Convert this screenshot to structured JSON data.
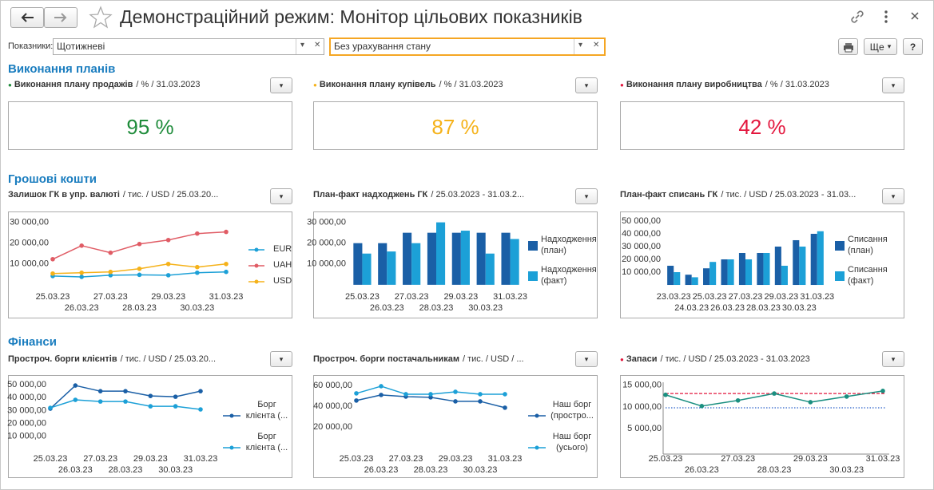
{
  "header": {
    "title": "Демонстраційний режим: Монітор цільових показників"
  },
  "filters": {
    "label": "Показники:",
    "period": "Щотижневі",
    "state": "Без урахування стану"
  },
  "toolbar": {
    "more": "Ще",
    "help": "?"
  },
  "sections": [
    {
      "title": "Виконання планів"
    },
    {
      "title": "Грошові кошти"
    },
    {
      "title": "Фінанси"
    }
  ],
  "kpis": [
    {
      "name": "Виконання плану продажів",
      "details": "/ % / 31.03.2023",
      "value": "95 %",
      "color": "#1f8c3b"
    },
    {
      "name": "Виконання плану купівель",
      "details": "/ % / 31.03.2023",
      "value": "87 %",
      "color": "#f5b21a"
    },
    {
      "name": "Виконання плану виробництва",
      "details": "/ % / 31.03.2023",
      "value": "42 %",
      "color": "#e3173e"
    }
  ],
  "chart_data": [
    {
      "type": "line",
      "title": "Залишок ГК в упр. валюті",
      "details": "/ тис. / USD / 25.03.20...",
      "categories": [
        "25.03.23",
        "26.03.23",
        "27.03.23",
        "28.03.23",
        "29.03.23",
        "30.03.23",
        "31.03.23"
      ],
      "series": [
        {
          "name": "EUR",
          "color": "#1ca0d7",
          "values": [
            4200,
            3800,
            4600,
            4800,
            4600,
            5800,
            6200
          ]
        },
        {
          "name": "UAH",
          "color": "#e05c65",
          "values": [
            12300,
            18800,
            15400,
            19600,
            21500,
            24600,
            25400
          ]
        },
        {
          "name": "USD",
          "color": "#f5b21a",
          "values": [
            5400,
            5800,
            6200,
            7700,
            10000,
            8500,
            10000
          ]
        }
      ],
      "ylim": [
        -3500,
        31000
      ],
      "yticks": [
        {
          "value": 10000,
          "label": "10 000,00"
        },
        {
          "value": 20000,
          "label": "20 000,00"
        },
        {
          "value": 30000,
          "label": "30 000,00"
        }
      ],
      "legend": "right"
    },
    {
      "type": "bar",
      "title": "План-факт надходжень ГК",
      "details": "/ 25.03.2023 - 31.03.2...",
      "categories": [
        "25.03.23",
        "26.03.23",
        "27.03.23",
        "28.03.23",
        "29.03.23",
        "30.03.23",
        "31.03.23"
      ],
      "series": [
        {
          "name": "Надходження (план)",
          "color": "#1a5fa6",
          "values": [
            20000,
            20000,
            25000,
            25000,
            25000,
            25000,
            25000
          ]
        },
        {
          "name": "Надходження (факт)",
          "color": "#1ca0d7",
          "values": [
            15000,
            16000,
            20000,
            30000,
            26000,
            15000,
            22000
          ]
        }
      ],
      "ylim": [
        -3500,
        31000
      ],
      "yticks": [
        {
          "value": 10000,
          "label": "10 000,00"
        },
        {
          "value": 20000,
          "label": "20 000,00"
        },
        {
          "value": 30000,
          "label": "30 000,00"
        }
      ],
      "legend": "right"
    },
    {
      "type": "bar",
      "title": "План-факт списань ГК",
      "details": "/ тис. / USD / 25.03.2023 - 31.03...",
      "categories": [
        "23.03.23",
        "24.03.23",
        "25.03.23",
        "26.03.23",
        "27.03.23",
        "28.03.23",
        "29.03.23",
        "30.03.23",
        "31.03.23"
      ],
      "series": [
        {
          "name": "Списання (план)",
          "color": "#1a5fa6",
          "values": [
            15000,
            8000,
            13000,
            20000,
            25000,
            25000,
            30000,
            35000,
            40000
          ]
        },
        {
          "name": "Списання (факт)",
          "color": "#1ca0d7",
          "values": [
            10000,
            6000,
            18000,
            20000,
            20000,
            25000,
            15000,
            30000,
            42000
          ]
        }
      ],
      "ylim": [
        -5600,
        50600
      ],
      "yticks": [
        {
          "value": 10000,
          "label": "10 000,00"
        },
        {
          "value": 20000,
          "label": "20 000,00"
        },
        {
          "value": 30000,
          "label": "30 000,00"
        },
        {
          "value": 40000,
          "label": "40 000,00"
        },
        {
          "value": 50000,
          "label": "50 000,00"
        }
      ],
      "legend": "right"
    },
    {
      "type": "line",
      "title": "Простроч. борги клієнтів",
      "details": "/ тис. / USD / 25.03.20...",
      "categories": [
        "25.03.23",
        "26.03.23",
        "27.03.23",
        "28.03.23",
        "29.03.23",
        "30.03.23",
        "31.03.23"
      ],
      "series": [
        {
          "name": "Борг клієнта (...",
          "color": "#1a5fa6",
          "values": [
            31500,
            49400,
            45000,
            45000,
            41300,
            40700,
            45000
          ]
        },
        {
          "name": "Борг клієнта (...",
          "color": "#1ca0d7",
          "values": [
            32100,
            38300,
            37000,
            37000,
            33300,
            33300,
            30900
          ]
        }
      ],
      "ylim": [
        -3700,
        51900
      ],
      "yticks": [
        {
          "value": 10000,
          "label": "10 000,00"
        },
        {
          "value": 20000,
          "label": "20 000,00"
        },
        {
          "value": 30000,
          "label": "30 000,00"
        },
        {
          "value": 40000,
          "label": "40 000,00"
        },
        {
          "value": 50000,
          "label": "50 000,00"
        }
      ],
      "legend": "right"
    },
    {
      "type": "line",
      "title": "Простроч. борги постачальникам",
      "details": "/ тис. / USD / ...",
      "categories": [
        "25.03.23",
        "26.03.23",
        "27.03.23",
        "28.03.23",
        "29.03.23",
        "30.03.23",
        "31.03.23"
      ],
      "series": [
        {
          "name": "Наш борг (простро...",
          "color": "#1a5fa6",
          "values": [
            45400,
            50800,
            49200,
            48500,
            44600,
            44600,
            38500
          ]
        },
        {
          "name": "Наш борг (усього)",
          "color": "#1ca0d7",
          "values": [
            52300,
            59200,
            51500,
            51500,
            53800,
            51500,
            51500
          ]
        }
      ],
      "ylim": [
        -6200,
        63000
      ],
      "yticks": [
        {
          "value": 20000,
          "label": "20 000,00"
        },
        {
          "value": 40000,
          "label": "40 000,00"
        },
        {
          "value": 60000,
          "label": "60 000,00"
        }
      ],
      "legend": "right"
    },
    {
      "type": "line",
      "title": "Запаси",
      "details": "/ тис. / USD / 25.03.2023 - 31.03.2023",
      "marker": "#e3173e",
      "categories": [
        "25.03.23",
        "26.03.23",
        "27.03.23",
        "28.03.23",
        "29.03.23",
        "30.03.23",
        "31.03.23"
      ],
      "series": [
        {
          "color": "#1a8f80",
          "values": [
            12800,
            10200,
            11500,
            13100,
            11100,
            12400,
            13700
          ]
        }
      ],
      "reference_lines": [
        {
          "value": 13100,
          "color": "#e3173e",
          "style": "dashed"
        },
        {
          "value": 9800,
          "color": "#2a62c9",
          "style": "dotted"
        }
      ],
      "ylim": [
        -900,
        15700
      ],
      "yticks": [
        {
          "value": 5000,
          "label": "5 000,00"
        },
        {
          "value": 10000,
          "label": "10 000,00"
        },
        {
          "value": 15000,
          "label": "15 000,00"
        }
      ],
      "axis_lines": true
    }
  ]
}
